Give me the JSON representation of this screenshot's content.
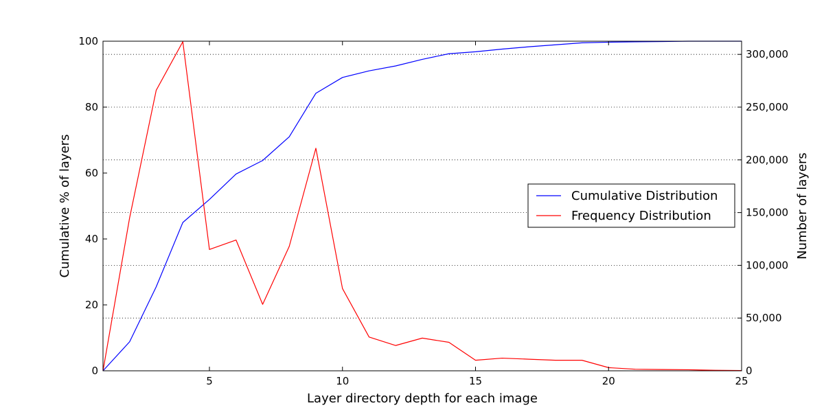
{
  "chart_data": {
    "type": "line",
    "title": "",
    "xlabel": "Layer directory depth for each image",
    "ylabel_left": "Cumulative % of layers",
    "ylabel_right": "Number of layers",
    "xlim": [
      1,
      25
    ],
    "ylim_left": [
      0,
      100
    ],
    "ylim_right": [
      0,
      312500
    ],
    "x_ticks": [
      5,
      10,
      15,
      20,
      25
    ],
    "x_tick_labels": [
      "5",
      "10",
      "15",
      "20",
      "25"
    ],
    "y_left_ticks": [
      0,
      20,
      40,
      60,
      80,
      100
    ],
    "y_left_tick_labels": [
      "0",
      "20",
      "40",
      "60",
      "80",
      "100"
    ],
    "y_right_ticks": [
      0,
      50000,
      100000,
      150000,
      200000,
      250000,
      300000
    ],
    "y_right_tick_labels": [
      "0",
      "50,000",
      "100,000",
      "150,000",
      "200,000",
      "250,000",
      "300,000"
    ],
    "grid": "right-axis horizontal dotted",
    "legend_placement": "center-right",
    "series": [
      {
        "name": "Cumulative Distribution",
        "axis": "left",
        "color": "#0000ff",
        "x": [
          1,
          2,
          3,
          4,
          5,
          6,
          7,
          8,
          9,
          10,
          11,
          12,
          13,
          14,
          15,
          16,
          17,
          18,
          19,
          20,
          21,
          22,
          23,
          24,
          25
        ],
        "values": [
          0,
          8.8,
          25.5,
          45,
          52,
          59.7,
          63.8,
          71,
          84.2,
          89,
          91,
          92.5,
          94.5,
          96.2,
          96.8,
          97.6,
          98.3,
          98.9,
          99.5,
          99.7,
          99.8,
          99.9,
          100,
          100,
          100
        ]
      },
      {
        "name": "Frequency Distribution",
        "axis": "right",
        "color": "#ff0000",
        "x": [
          1,
          2,
          3,
          4,
          5,
          6,
          7,
          8,
          9,
          10,
          11,
          12,
          13,
          14,
          15,
          16,
          17,
          18,
          19,
          20,
          21,
          22,
          23,
          24,
          25
        ],
        "values": [
          0,
          145000,
          266000,
          312000,
          115000,
          124000,
          63000,
          118000,
          211000,
          78000,
          32000,
          24000,
          31000,
          27000,
          10000,
          12000,
          11000,
          10000,
          10000,
          3000,
          1500,
          1200,
          1000,
          500,
          300
        ]
      }
    ]
  }
}
